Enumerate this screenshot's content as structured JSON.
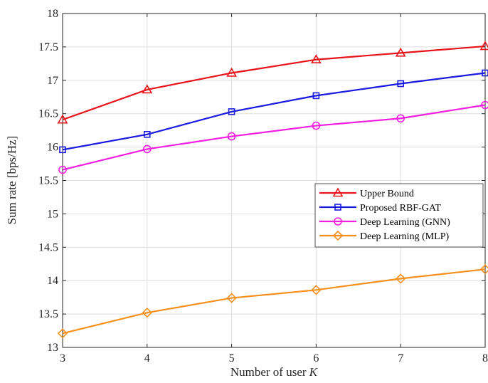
{
  "chart_data": {
    "type": "line",
    "x": [
      3,
      4,
      5,
      6,
      7,
      8
    ],
    "xlabel": "Number of user",
    "xlabel_var": "K",
    "ylabel": "Sum rate [bps/Hz]",
    "xlim": [
      3,
      8
    ],
    "ylim": [
      13,
      18
    ],
    "xticks": [
      "3",
      "4",
      "5",
      "6",
      "7",
      "8"
    ],
    "yticks": [
      "13",
      "13.5",
      "14",
      "14.5",
      "15",
      "15.5",
      "16",
      "16.5",
      "17",
      "17.5",
      "18"
    ],
    "grid": true,
    "legend_position": "right",
    "series": [
      {
        "name": "Upper Bound",
        "color": "#e8141b",
        "marker": "triangle",
        "values": [
          16.41,
          16.86,
          17.11,
          17.31,
          17.41,
          17.51
        ]
      },
      {
        "name": "Proposed RBF-GAT",
        "color": "#1a1ae0",
        "marker": "square",
        "values": [
          15.96,
          16.19,
          16.53,
          16.77,
          16.95,
          17.11
        ]
      },
      {
        "name": "Deep Learning (GNN)",
        "color": "#f21ee0",
        "marker": "circle",
        "values": [
          15.66,
          15.97,
          16.16,
          16.32,
          16.43,
          16.63
        ]
      },
      {
        "name": "Deep Learning (MLP)",
        "color": "#f5901e",
        "marker": "diamond",
        "values": [
          13.21,
          13.52,
          13.74,
          13.86,
          14.03,
          14.17
        ]
      }
    ]
  }
}
